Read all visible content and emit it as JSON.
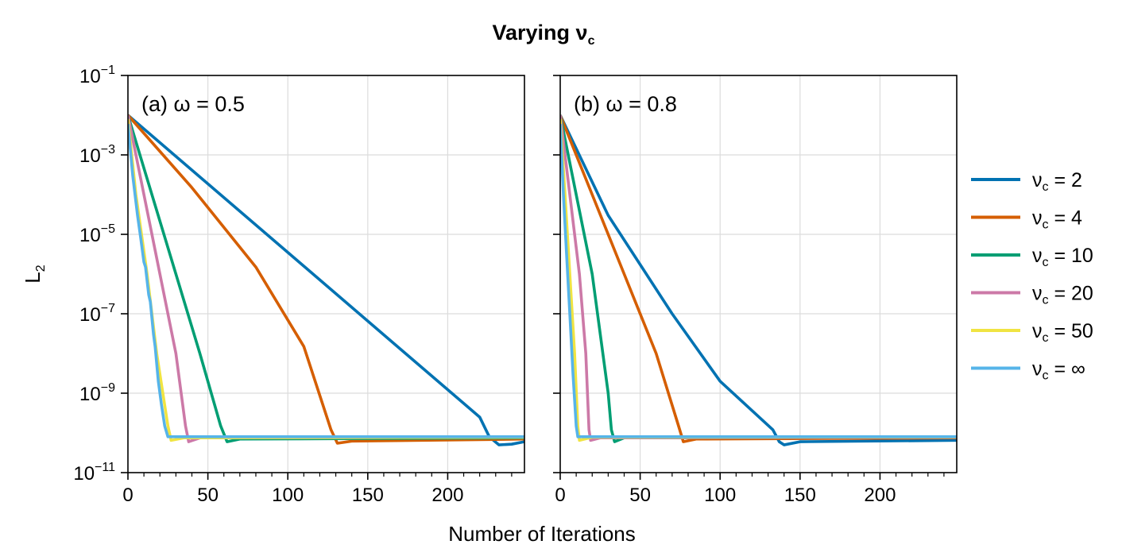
{
  "title": "Varying ν",
  "title_sub": "c",
  "chart_data": {
    "type": "line",
    "xlabel": "Number of Iterations",
    "ylabel": "L",
    "ylabel_sub": "2",
    "yscale": "log",
    "ylim": [
      1e-11,
      0.1
    ],
    "xlim": [
      0,
      248
    ],
    "grid": true,
    "legend_position": "right",
    "y_ticks": [
      {
        "base": "10",
        "exp": "−1"
      },
      {
        "base": "10",
        "exp": "−3"
      },
      {
        "base": "10",
        "exp": "−5"
      },
      {
        "base": "10",
        "exp": "−7"
      },
      {
        "base": "10",
        "exp": "−9"
      },
      {
        "base": "10",
        "exp": "−11"
      }
    ],
    "x_ticks": [
      "0",
      "50",
      "100",
      "150",
      "200"
    ],
    "legend": [
      {
        "name": "ν",
        "sub": "c",
        "value": " = 2",
        "color": "#0072B2"
      },
      {
        "name": "ν",
        "sub": "c",
        "value": " = 4",
        "color": "#D55E00"
      },
      {
        "name": "ν",
        "sub": "c",
        "value": " = 10",
        "color": "#009E73"
      },
      {
        "name": "ν",
        "sub": "c",
        "value": " = 20",
        "color": "#CC79A7"
      },
      {
        "name": "ν",
        "sub": "c",
        "value": " = 50",
        "color": "#F0E442"
      },
      {
        "name": "ν",
        "sub": "c",
        "value": " = ∞",
        "color": "#56B4E9"
      }
    ],
    "panels": [
      {
        "label": "(a) ω = 0.5",
        "series": [
          {
            "points": [
              [
                0,
                0.01
              ],
              [
                220,
                2.5e-10
              ],
              [
                226,
                8e-11
              ],
              [
                232,
                5e-11
              ],
              [
                240,
                5.2e-11
              ],
              [
                248,
                6e-11
              ]
            ]
          },
          {
            "points": [
              [
                0,
                0.01
              ],
              [
                40,
                0.00015
              ],
              [
                80,
                1.5e-06
              ],
              [
                110,
                1.5e-08
              ],
              [
                127,
                1.2e-10
              ],
              [
                131,
                5.5e-11
              ],
              [
                140,
                6.2e-11
              ],
              [
                248,
                7e-11
              ]
            ]
          },
          {
            "points": [
              [
                0,
                0.01
              ],
              [
                15,
                0.0001
              ],
              [
                30,
                1e-06
              ],
              [
                45,
                1e-08
              ],
              [
                58,
                1.5e-10
              ],
              [
                62,
                6e-11
              ],
              [
                70,
                7e-11
              ],
              [
                248,
                7.5e-11
              ]
            ]
          },
          {
            "points": [
              [
                0,
                0.01
              ],
              [
                10,
                0.0001
              ],
              [
                20,
                1e-06
              ],
              [
                30,
                1e-08
              ],
              [
                36,
                1.5e-10
              ],
              [
                38,
                6e-11
              ],
              [
                45,
                7.5e-11
              ],
              [
                248,
                7.8e-11
              ]
            ]
          },
          {
            "points": [
              [
                0,
                0.008
              ],
              [
                5,
                0.0001
              ],
              [
                12,
                1e-06
              ],
              [
                18,
                1e-08
              ],
              [
                25,
                1.5e-10
              ],
              [
                27,
                6.5e-11
              ],
              [
                35,
                7.5e-11
              ],
              [
                248,
                7.8e-11
              ]
            ]
          },
          {
            "points": [
              [
                0,
                0.006
              ],
              [
                3,
                0.0003
              ],
              [
                6,
                3e-05
              ],
              [
                8,
                8e-06
              ],
              [
                10,
                2e-06
              ],
              [
                11,
                1.5e-06
              ],
              [
                13,
                3e-07
              ],
              [
                14,
                2e-07
              ],
              [
                16,
                3e-08
              ],
              [
                17,
                1.5e-08
              ],
              [
                19,
                2e-09
              ],
              [
                21,
                5e-10
              ],
              [
                23,
                1.5e-10
              ],
              [
                25,
                8e-11
              ],
              [
                248,
                8e-11
              ]
            ]
          }
        ]
      },
      {
        "label": "(b) ω = 0.8",
        "series": [
          {
            "points": [
              [
                0,
                0.01
              ],
              [
                30,
                3e-05
              ],
              [
                70,
                1e-07
              ],
              [
                100,
                2e-09
              ],
              [
                133,
                1.2e-10
              ],
              [
                137,
                6e-11
              ],
              [
                140,
                5e-11
              ],
              [
                150,
                6e-11
              ],
              [
                248,
                6.5e-11
              ]
            ]
          },
          {
            "points": [
              [
                0,
                0.01
              ],
              [
                20,
                0.0001
              ],
              [
                40,
                1e-06
              ],
              [
                60,
                1e-08
              ],
              [
                74,
                1.5e-10
              ],
              [
                77,
                6e-11
              ],
              [
                85,
                7e-11
              ],
              [
                248,
                7.5e-11
              ]
            ]
          },
          {
            "points": [
              [
                0,
                0.01
              ],
              [
                10,
                0.0001
              ],
              [
                20,
                1e-06
              ],
              [
                30,
                1e-09
              ],
              [
                32,
                1.2e-10
              ],
              [
                34,
                6e-11
              ],
              [
                40,
                7.5e-11
              ],
              [
                248,
                7.8e-11
              ]
            ]
          },
          {
            "points": [
              [
                0,
                0.01
              ],
              [
                6,
                0.0001
              ],
              [
                12,
                1e-06
              ],
              [
                16,
                1e-08
              ],
              [
                18,
                1.2e-10
              ],
              [
                19,
                6.5e-11
              ],
              [
                25,
                7.5e-11
              ],
              [
                248,
                7.8e-11
              ]
            ]
          },
          {
            "points": [
              [
                0,
                0.008
              ],
              [
                3,
                0.0001
              ],
              [
                6,
                1e-06
              ],
              [
                9,
                1e-08
              ],
              [
                11,
                1.5e-10
              ],
              [
                12,
                6.5e-11
              ],
              [
                20,
                7.8e-11
              ],
              [
                248,
                7.9e-11
              ]
            ]
          },
          {
            "points": [
              [
                0,
                0.006
              ],
              [
                2,
                0.0001
              ],
              [
                4,
                3e-06
              ],
              [
                6,
                1e-07
              ],
              [
                8,
                3e-09
              ],
              [
                10,
                1.5e-10
              ],
              [
                11,
                8e-11
              ],
              [
                248,
                8e-11
              ]
            ]
          }
        ]
      }
    ]
  }
}
